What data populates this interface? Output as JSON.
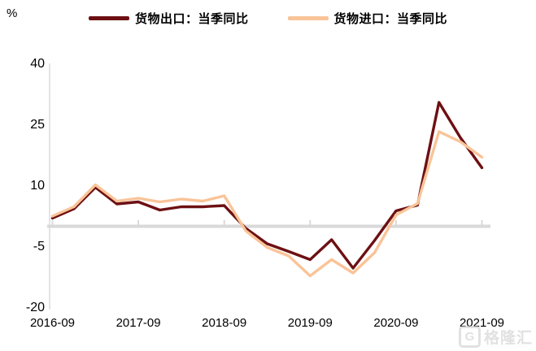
{
  "percent_label": "%",
  "legend": [
    {
      "label": "货物出口：当季同比",
      "color": "#6d1013"
    },
    {
      "label": "货物进口：当季同比",
      "color": "#f9c498"
    }
  ],
  "colors": {
    "export_line": "#6d1013",
    "import_line": "#f9c498",
    "zero_line": "#d9d9d9",
    "axis_line": "#d9d9d9",
    "text": "#000000"
  },
  "watermark": {
    "icon": "G",
    "text": "格隆汇"
  },
  "chart_data": {
    "type": "line",
    "title": "",
    "xlabel": "",
    "ylabel": "%",
    "ylim": [
      -20,
      40
    ],
    "y_ticks": [
      40,
      25,
      10,
      -5,
      -20
    ],
    "grid": false,
    "legend_position": "top",
    "zero_line": true,
    "x": [
      "2016-09",
      "2016-12",
      "2017-03",
      "2017-06",
      "2017-09",
      "2017-12",
      "2018-03",
      "2018-06",
      "2018-09",
      "2018-12",
      "2019-03",
      "2019-06",
      "2019-09",
      "2019-12",
      "2020-03",
      "2020-06",
      "2020-09",
      "2020-12",
      "2021-03",
      "2021-06",
      "2021-09"
    ],
    "x_axis_tick_labels": [
      "2016-09",
      "2017-09",
      "2018-09",
      "2019-09",
      "2020-09",
      "2021-09"
    ],
    "series": [
      {
        "name": "货物出口：当季同比",
        "color": "#6d1013",
        "values": [
          2.0,
          4.3,
          9.6,
          5.5,
          6.0,
          4.0,
          4.8,
          4.8,
          5.1,
          -0.5,
          -4.3,
          -6.2,
          -8.2,
          -3.3,
          -10.3,
          -3.5,
          3.8,
          5.2,
          30.5,
          21.8,
          14.4
        ]
      },
      {
        "name": "货物进口：当季同比",
        "color": "#f9c498",
        "values": [
          2.5,
          4.8,
          10.2,
          6.2,
          6.9,
          6.0,
          6.7,
          6.2,
          7.5,
          -1.1,
          -5.2,
          -7.3,
          -12.2,
          -8.2,
          -11.5,
          -6.5,
          2.8,
          5.6,
          23.3,
          20.8,
          17.0
        ]
      }
    ]
  }
}
